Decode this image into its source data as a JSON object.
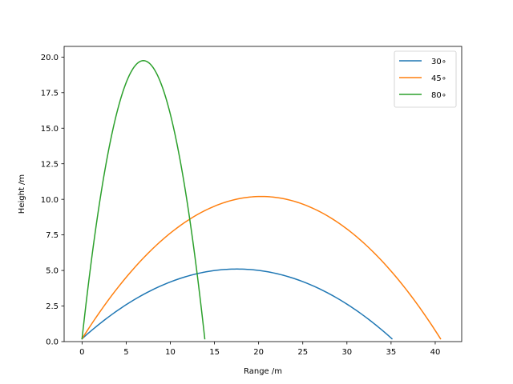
{
  "chart_data": {
    "type": "line",
    "title": "",
    "xlabel": "Range /m",
    "ylabel": "Height /m",
    "xlim": [
      -2.03,
      43.0
    ],
    "ylim": [
      0,
      20.75
    ],
    "xticks": [
      0,
      5,
      10,
      15,
      20,
      25,
      30,
      35,
      40
    ],
    "xtick_labels": [
      "0",
      "5",
      "10",
      "15",
      "20",
      "25",
      "30",
      "35",
      "40"
    ],
    "yticks": [
      0,
      2.5,
      5,
      7.5,
      10,
      12.5,
      15,
      17.5,
      20
    ],
    "ytick_labels": [
      "0.0",
      "2.5",
      "5.0",
      "7.5",
      "10.0",
      "12.5",
      "15.0",
      "17.5",
      "20.0"
    ],
    "grid": false,
    "legend_position": "top-right",
    "colors": {
      "30": "#1f77b4",
      "45": "#ff7f0e",
      "80": "#2ca02c"
    },
    "series": [
      {
        "name": "30∘",
        "angle_deg": 30,
        "color": "#1f77b4",
        "x": [
          0,
          3.5,
          7.0,
          10.5,
          14.0,
          17.6,
          21.1,
          24.6,
          28.1,
          31.6,
          35.1
        ],
        "y": [
          0.2,
          1.96,
          3.33,
          4.31,
          4.9,
          5.1,
          4.9,
          4.31,
          3.33,
          1.96,
          0.2
        ]
      },
      {
        "name": "45∘",
        "angle_deg": 45,
        "color": "#ff7f0e",
        "x": [
          0,
          4.05,
          8.1,
          12.2,
          16.2,
          20.3,
          24.3,
          28.4,
          32.4,
          36.5,
          40.6
        ],
        "y": [
          0.2,
          3.86,
          6.64,
          8.6,
          9.77,
          10.2,
          9.77,
          8.6,
          6.64,
          3.86,
          0.2
        ]
      },
      {
        "name": "80∘",
        "angle_deg": 80,
        "color": "#2ca02c",
        "x": [
          0,
          1.39,
          2.78,
          4.17,
          5.56,
          6.95,
          8.34,
          9.73,
          11.1,
          12.5,
          13.9
        ],
        "y": [
          0.2,
          7.3,
          12.9,
          16.9,
          19.3,
          19.75,
          19.3,
          16.9,
          12.9,
          7.3,
          0.2
        ]
      }
    ]
  }
}
